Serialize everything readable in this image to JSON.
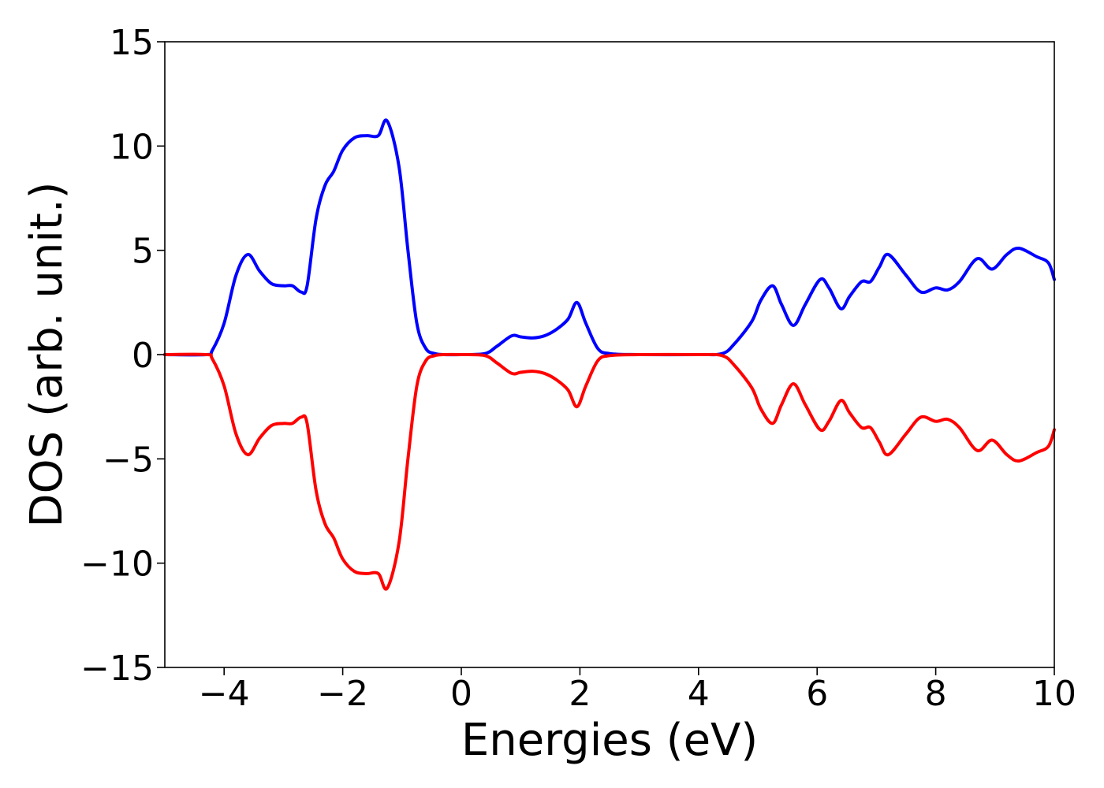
{
  "chart_data": {
    "type": "line",
    "title": "",
    "xlabel": "Energies (eV)",
    "ylabel": "DOS (arb. unit.)",
    "xlim": [
      -5,
      10
    ],
    "ylim": [
      -15,
      15
    ],
    "x_ticks": [
      -4,
      -2,
      0,
      2,
      4,
      6,
      8,
      10
    ],
    "y_ticks": [
      15,
      10,
      5,
      0,
      -5,
      -10,
      -15
    ],
    "x_tick_labels": [
      "−4",
      "−2",
      "0",
      "2",
      "4",
      "6",
      "8",
      "10"
    ],
    "y_tick_labels": [
      "15",
      "10",
      "5",
      "0",
      "−5",
      "−10",
      "−15"
    ],
    "grid": false,
    "legend": "none",
    "series": [
      {
        "color": "#0000ff",
        "x": [
          -5,
          -4.3,
          -4.2,
          -4.0,
          -3.8,
          -3.6,
          -3.4,
          -3.2,
          -3.0,
          -2.85,
          -2.7,
          -2.6,
          -2.45,
          -2.3,
          -2.15,
          -2.0,
          -1.8,
          -1.6,
          -1.4,
          -1.25,
          -1.05,
          -0.9,
          -0.75,
          -0.6,
          -0.45,
          -0.3,
          0,
          0.4,
          0.6,
          0.85,
          1.0,
          1.2,
          1.4,
          1.6,
          1.8,
          1.95,
          2.1,
          2.3,
          2.5,
          3.0,
          4.0,
          4.4,
          4.6,
          4.9,
          5.05,
          5.25,
          5.4,
          5.6,
          5.8,
          6.05,
          6.2,
          6.4,
          6.55,
          6.75,
          6.9,
          7.05,
          7.2,
          7.5,
          7.75,
          8.0,
          8.2,
          8.4,
          8.7,
          8.95,
          9.2,
          9.4,
          9.7,
          9.9,
          10.0
        ],
        "values": [
          0,
          0,
          0.2,
          1.5,
          3.8,
          4.8,
          4.0,
          3.4,
          3.3,
          3.3,
          3.0,
          3.3,
          6.5,
          8.1,
          8.8,
          9.8,
          10.4,
          10.5,
          10.5,
          11.2,
          9.0,
          5.0,
          1.5,
          0.3,
          0.05,
          0,
          0,
          0.05,
          0.4,
          0.9,
          0.85,
          0.8,
          0.9,
          1.2,
          1.7,
          2.5,
          1.5,
          0.3,
          0.05,
          0,
          0,
          0.05,
          0.5,
          1.6,
          2.6,
          3.3,
          2.4,
          1.4,
          2.4,
          3.6,
          3.2,
          2.2,
          2.8,
          3.5,
          3.5,
          4.2,
          4.8,
          3.8,
          3.0,
          3.2,
          3.1,
          3.5,
          4.6,
          4.1,
          4.8,
          5.1,
          4.7,
          4.4,
          3.6
        ]
      },
      {
        "color": "#ff0000",
        "x": [
          -5,
          -4.3,
          -4.2,
          -4.0,
          -3.8,
          -3.6,
          -3.4,
          -3.2,
          -3.0,
          -2.85,
          -2.7,
          -2.6,
          -2.45,
          -2.3,
          -2.15,
          -2.0,
          -1.8,
          -1.6,
          -1.4,
          -1.25,
          -1.05,
          -0.9,
          -0.75,
          -0.6,
          -0.45,
          -0.3,
          0,
          0.4,
          0.6,
          0.85,
          1.0,
          1.2,
          1.4,
          1.6,
          1.8,
          1.95,
          2.1,
          2.3,
          2.5,
          3.0,
          4.0,
          4.4,
          4.6,
          4.9,
          5.05,
          5.25,
          5.4,
          5.6,
          5.8,
          6.05,
          6.2,
          6.4,
          6.55,
          6.75,
          6.9,
          7.05,
          7.2,
          7.5,
          7.75,
          8.0,
          8.2,
          8.4,
          8.7,
          8.95,
          9.2,
          9.4,
          9.7,
          9.9,
          10.0
        ],
        "values": [
          0,
          0,
          -0.2,
          -1.5,
          -3.8,
          -4.8,
          -4.0,
          -3.4,
          -3.3,
          -3.3,
          -3.0,
          -3.3,
          -6.5,
          -8.1,
          -8.8,
          -9.8,
          -10.4,
          -10.5,
          -10.5,
          -11.2,
          -9.0,
          -5.0,
          -1.5,
          -0.3,
          -0.05,
          0,
          0,
          -0.05,
          -0.4,
          -0.9,
          -0.85,
          -0.8,
          -0.9,
          -1.2,
          -1.7,
          -2.5,
          -1.5,
          -0.3,
          -0.05,
          0,
          0,
          -0.05,
          -0.5,
          -1.6,
          -2.6,
          -3.3,
          -2.4,
          -1.4,
          -2.4,
          -3.6,
          -3.2,
          -2.2,
          -2.8,
          -3.5,
          -3.5,
          -4.2,
          -4.8,
          -3.8,
          -3.0,
          -3.2,
          -3.1,
          -3.5,
          -4.6,
          -4.1,
          -4.8,
          -5.1,
          -4.7,
          -4.4,
          -3.6
        ]
      }
    ]
  }
}
